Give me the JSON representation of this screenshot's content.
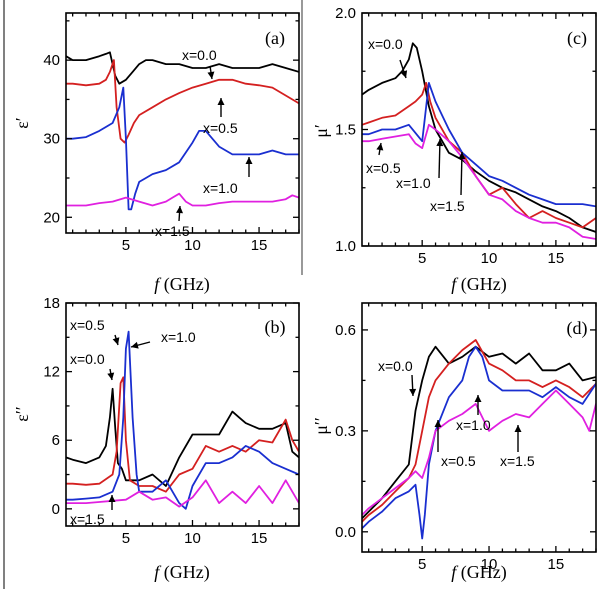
{
  "colors": {
    "x=0.0": "#000000",
    "x=0.5": "#d42020",
    "x=1.0": "#1a2fd0",
    "x=1.5": "#e020e0"
  },
  "chart_data": [
    {
      "panel": "(a)",
      "type": "line",
      "xlabel_italic": "f",
      "xlabel_rest": " (GHz)",
      "ylabel": "ε′",
      "xlim": [
        0.5,
        18
      ],
      "ylim": [
        18,
        46
      ],
      "xticks": [
        5,
        10,
        15
      ],
      "yticks": [
        20,
        30,
        40
      ],
      "grid": false,
      "series": [
        {
          "name": "x=0.0",
          "x": [
            0.5,
            1,
            2,
            3,
            3.5,
            3.8,
            4.2,
            4.5,
            5,
            5.5,
            6,
            6.5,
            7,
            8,
            9,
            10,
            11,
            12,
            13,
            14,
            15,
            16,
            17,
            18
          ],
          "y": [
            40.5,
            40,
            40,
            40.5,
            40.8,
            41,
            38,
            37,
            37.5,
            38.5,
            39.5,
            40,
            40,
            39.5,
            39.5,
            39,
            39,
            39.5,
            39,
            39,
            39,
            39.5,
            39,
            38.5
          ]
        },
        {
          "name": "x=0.5",
          "x": [
            0.5,
            1,
            2,
            3,
            3.5,
            3.8,
            4.1,
            4.3,
            4.6,
            4.9,
            5.2,
            5.6,
            6,
            7,
            8,
            9,
            10,
            11,
            12,
            13,
            14,
            15,
            16,
            17,
            18
          ],
          "y": [
            37,
            37,
            36.8,
            37,
            37.5,
            38.5,
            40,
            34,
            30,
            29.5,
            30.5,
            32,
            33,
            34,
            35,
            35.8,
            36.5,
            37,
            37.5,
            37.5,
            37,
            36.8,
            36.5,
            35.5,
            34.5
          ]
        },
        {
          "name": "x=1.0",
          "x": [
            0.5,
            1,
            2,
            3,
            4,
            4.5,
            4.8,
            5,
            5.2,
            5.4,
            5.7,
            6,
            6.5,
            7,
            8,
            9,
            10,
            10.5,
            11,
            12,
            13,
            14,
            15,
            16,
            17,
            18
          ],
          "y": [
            30,
            30,
            30.2,
            31,
            32,
            34,
            36.5,
            30,
            21,
            21,
            23,
            24.5,
            25,
            25.5,
            26,
            27,
            29.5,
            31,
            31,
            29,
            28,
            28,
            28,
            28.5,
            28,
            28
          ]
        },
        {
          "name": "x=1.5",
          "x": [
            0.5,
            1,
            2,
            3,
            4,
            5,
            6,
            7,
            8,
            8.5,
            9,
            9.5,
            10,
            11,
            12,
            13,
            14,
            15,
            16,
            17,
            17.5,
            18
          ],
          "y": [
            21.5,
            21.5,
            21.5,
            21.8,
            22,
            22.5,
            22,
            21.5,
            22,
            22.5,
            23,
            22,
            21.5,
            21.5,
            21.8,
            22,
            22,
            22,
            22,
            22.3,
            22.8,
            22.5
          ]
        }
      ],
      "annotations": [
        "x=0.0",
        "x=0.5",
        "x=1.0",
        "x=1.5"
      ]
    },
    {
      "panel": "(c)",
      "type": "line",
      "xlabel_italic": "f",
      "xlabel_rest": " (GHz)",
      "ylabel": "μ′",
      "xlim": [
        0.5,
        18
      ],
      "ylim": [
        1.0,
        2.0
      ],
      "xticks": [
        5,
        10,
        15
      ],
      "yticks": [
        1.0,
        1.5,
        2.0
      ],
      "grid": false,
      "series": [
        {
          "name": "x=0.0",
          "x": [
            0.5,
            1,
            2,
            3,
            3.5,
            4,
            4.3,
            4.6,
            5,
            5.5,
            6,
            7,
            8,
            9,
            10,
            11,
            12,
            13,
            14,
            15,
            16,
            17,
            18
          ],
          "y": [
            1.65,
            1.67,
            1.7,
            1.72,
            1.75,
            1.8,
            1.87,
            1.85,
            1.75,
            1.6,
            1.5,
            1.4,
            1.37,
            1.32,
            1.28,
            1.25,
            1.23,
            1.2,
            1.17,
            1.15,
            1.12,
            1.08,
            1.06
          ]
        },
        {
          "name": "x=0.5",
          "x": [
            0.5,
            1,
            2,
            3,
            4,
            4.5,
            5,
            5.3,
            5.6,
            6,
            7,
            8,
            9,
            10,
            11,
            12,
            13,
            14,
            15,
            16,
            17,
            18
          ],
          "y": [
            1.52,
            1.53,
            1.55,
            1.56,
            1.6,
            1.62,
            1.65,
            1.7,
            1.62,
            1.55,
            1.45,
            1.4,
            1.3,
            1.22,
            1.25,
            1.18,
            1.12,
            1.15,
            1.12,
            1.1,
            1.08,
            1.12
          ]
        },
        {
          "name": "x=1.0",
          "x": [
            0.5,
            1,
            2,
            3,
            4,
            5,
            5.5,
            6,
            7,
            8,
            9,
            10,
            11,
            12,
            13,
            14,
            15,
            16,
            17,
            18
          ],
          "y": [
            1.48,
            1.48,
            1.5,
            1.5,
            1.52,
            1.45,
            1.7,
            1.62,
            1.5,
            1.4,
            1.35,
            1.3,
            1.28,
            1.25,
            1.22,
            1.2,
            1.18,
            1.18,
            1.18,
            1.17
          ]
        },
        {
          "name": "x=1.5",
          "x": [
            0.5,
            1,
            2,
            3,
            4,
            4.5,
            5,
            5.5,
            6,
            7,
            8,
            9,
            10,
            11,
            12,
            13,
            14,
            15,
            16,
            17,
            18
          ],
          "y": [
            1.45,
            1.45,
            1.46,
            1.47,
            1.48,
            1.44,
            1.42,
            1.52,
            1.5,
            1.45,
            1.38,
            1.3,
            1.22,
            1.2,
            1.15,
            1.12,
            1.1,
            1.1,
            1.08,
            1.04,
            1.03
          ]
        }
      ],
      "annotations": [
        "x=0.0",
        "x=0.5",
        "x=1.0",
        "x=1.5"
      ]
    },
    {
      "panel": "(b)",
      "type": "line",
      "xlabel_italic": "f",
      "xlabel_rest": " (GHz)",
      "ylabel": "ε′′",
      "xlim": [
        0.5,
        18
      ],
      "ylim": [
        -1.5,
        18
      ],
      "xticks": [
        5,
        10,
        15
      ],
      "yticks": [
        0,
        6,
        12,
        18
      ],
      "grid": false,
      "series": [
        {
          "name": "x=0.0",
          "x": [
            0.5,
            1,
            2,
            3,
            3.5,
            3.8,
            4,
            4.2,
            4.4,
            4.7,
            5,
            6,
            7,
            8,
            9,
            10,
            11,
            12,
            13,
            13.5,
            14,
            15,
            16,
            17,
            17.5,
            18
          ],
          "y": [
            4.5,
            4.3,
            4,
            4.5,
            5.5,
            8,
            10.5,
            7,
            4,
            3.5,
            2.5,
            2.5,
            3,
            2,
            4.5,
            6.5,
            6.5,
            6.5,
            8.5,
            8,
            7.5,
            7,
            7,
            7.5,
            5,
            4.5
          ]
        },
        {
          "name": "x=0.5",
          "x": [
            0.5,
            1,
            2,
            3,
            4,
            4.3,
            4.6,
            4.8,
            5,
            5.3,
            6,
            7,
            8,
            9,
            10,
            11,
            12,
            13,
            14,
            15,
            16,
            17,
            17.5,
            18
          ],
          "y": [
            2.2,
            2.2,
            2.1,
            2.2,
            3,
            5,
            11,
            11.5,
            6,
            2.5,
            2,
            2,
            1.5,
            3,
            3.5,
            5.5,
            5,
            5.5,
            5,
            6,
            5.8,
            7.8,
            6,
            5
          ]
        },
        {
          "name": "x=1.0",
          "x": [
            0.5,
            1,
            2,
            3,
            4,
            4.5,
            4.8,
            5,
            5.2,
            5.5,
            5.8,
            6,
            7,
            8,
            9,
            9.5,
            10,
            11,
            12,
            13,
            14,
            15,
            16,
            17,
            18
          ],
          "y": [
            0.8,
            0.8,
            0.9,
            1,
            1.5,
            3,
            8,
            14,
            15.5,
            8,
            3,
            1.5,
            1.5,
            2.5,
            0.5,
            0,
            2,
            4,
            4,
            4.5,
            5.5,
            5,
            4,
            3.5,
            3
          ]
        },
        {
          "name": "x=1.5",
          "x": [
            0.5,
            1,
            2,
            3,
            4,
            5,
            6,
            7,
            8,
            9,
            10,
            11,
            12,
            13,
            14,
            15,
            16,
            17,
            18
          ],
          "y": [
            0.5,
            0.5,
            0.5,
            0.6,
            0.7,
            0.8,
            1.5,
            0.8,
            1,
            0.2,
            1,
            2.5,
            0.5,
            1.5,
            0.5,
            2,
            0.5,
            2.5,
            0.5
          ]
        }
      ],
      "annotations": [
        "x=0.5",
        "x=0.0",
        "x=1.0",
        "x=1.5"
      ]
    },
    {
      "panel": "(d)",
      "type": "line",
      "xlabel_italic": "f",
      "xlabel_rest": " (GHz)",
      "ylabel": "μ′′",
      "xlim": [
        0.5,
        18
      ],
      "ylim": [
        -0.06,
        0.68
      ],
      "xticks": [
        5,
        10,
        15
      ],
      "yticks": [
        0.0,
        0.3,
        0.6
      ],
      "grid": false,
      "series": [
        {
          "name": "x=0.0",
          "x": [
            0.5,
            1,
            2,
            3,
            4,
            4.5,
            5,
            5.5,
            6,
            7,
            8,
            9,
            10,
            11,
            12,
            13,
            14,
            15,
            16,
            17,
            18
          ],
          "y": [
            0.04,
            0.06,
            0.1,
            0.15,
            0.2,
            0.36,
            0.45,
            0.52,
            0.55,
            0.5,
            0.52,
            0.55,
            0.52,
            0.53,
            0.5,
            0.53,
            0.48,
            0.48,
            0.5,
            0.45,
            0.46
          ]
        },
        {
          "name": "x=0.5",
          "x": [
            0.5,
            1,
            2,
            3,
            4,
            4.5,
            5,
            5.5,
            6,
            7,
            8,
            9,
            10,
            11,
            12,
            13,
            14,
            15,
            16,
            17,
            18
          ],
          "y": [
            0.03,
            0.05,
            0.08,
            0.12,
            0.16,
            0.2,
            0.3,
            0.4,
            0.45,
            0.5,
            0.54,
            0.57,
            0.5,
            0.48,
            0.45,
            0.45,
            0.43,
            0.45,
            0.43,
            0.4,
            0.44
          ]
        },
        {
          "name": "x=1.0",
          "x": [
            0.5,
            1,
            2,
            3,
            4,
            4.5,
            4.8,
            5,
            5.2,
            5.5,
            6,
            7,
            8,
            8.5,
            9,
            9.5,
            10,
            11,
            12,
            13,
            14,
            15,
            16,
            17,
            18
          ],
          "y": [
            0.01,
            0.03,
            0.06,
            0.1,
            0.12,
            0.14,
            0.05,
            -0.02,
            0.05,
            0.2,
            0.3,
            0.4,
            0.45,
            0.52,
            0.55,
            0.52,
            0.45,
            0.42,
            0.42,
            0.42,
            0.4,
            0.43,
            0.4,
            0.38,
            0.44
          ]
        },
        {
          "name": "x=1.5",
          "x": [
            0.5,
            1,
            2,
            3,
            4,
            4.5,
            5,
            5.5,
            6,
            7,
            8,
            9,
            10,
            11,
            12,
            13,
            14,
            15,
            16,
            17,
            17.5,
            18
          ],
          "y": [
            0.05,
            0.07,
            0.1,
            0.13,
            0.16,
            0.18,
            0.16,
            0.22,
            0.3,
            0.33,
            0.35,
            0.38,
            0.3,
            0.33,
            0.35,
            0.34,
            0.38,
            0.42,
            0.38,
            0.34,
            0.3,
            0.38
          ]
        }
      ],
      "annotations": [
        "x=0.0",
        "x=1.0",
        "x=0.5",
        "x=1.5"
      ]
    }
  ]
}
